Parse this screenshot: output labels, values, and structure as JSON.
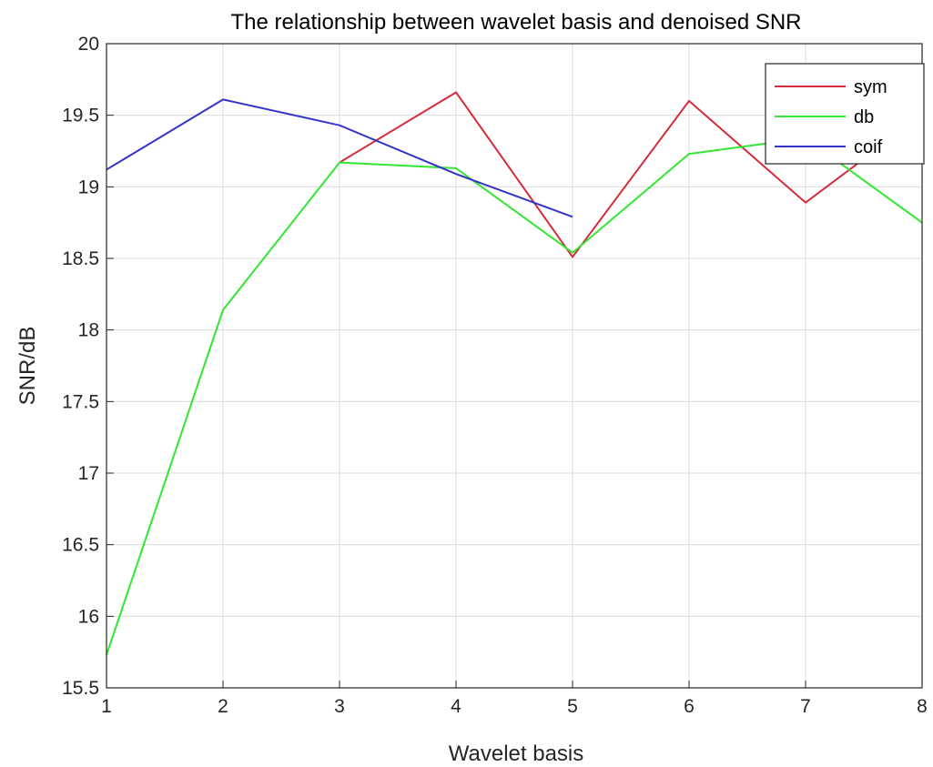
{
  "chart_data": {
    "type": "line",
    "title": "The relationship between wavelet basis and denoised SNR",
    "xlabel": "Wavelet basis",
    "ylabel": "SNR/dB",
    "xlim": [
      1,
      8
    ],
    "ylim": [
      15.5,
      20
    ],
    "xticks": [
      "1",
      "2",
      "3",
      "4",
      "5",
      "6",
      "7",
      "8"
    ],
    "yticks": [
      "15.5",
      "16",
      "16.5",
      "17",
      "17.5",
      "18",
      "18.5",
      "19",
      "19.5",
      "20"
    ],
    "grid": true,
    "legend_position": "top-right",
    "series": [
      {
        "name": "sym",
        "color": "#d62b3a",
        "x": [
          3,
          4,
          5,
          6,
          7,
          8
        ],
        "values": [
          19.17,
          19.66,
          18.51,
          19.6,
          18.89,
          19.5
        ]
      },
      {
        "name": "db",
        "color": "#33e633",
        "x": [
          1,
          2,
          3,
          4,
          5,
          6,
          7,
          8
        ],
        "values": [
          15.73,
          18.14,
          19.17,
          19.13,
          18.54,
          19.23,
          19.34,
          18.75
        ]
      },
      {
        "name": "coif",
        "color": "#3434c8",
        "x": [
          1,
          2,
          3,
          4,
          5
        ],
        "values": [
          19.12,
          19.61,
          19.43,
          19.09,
          18.79
        ]
      }
    ]
  }
}
